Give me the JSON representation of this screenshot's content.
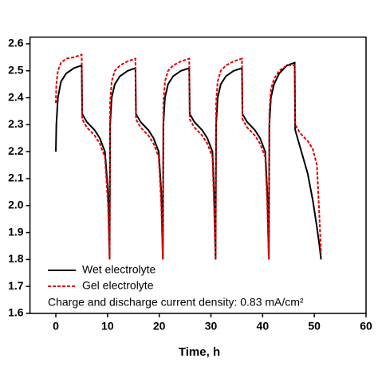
{
  "chart_data": {
    "type": "line",
    "x_label": "Time, h",
    "annotation": "Charge and discharge current density: 0.83 mA/cm²",
    "x": [
      0,
      0.1,
      0.4,
      1,
      2,
      3.5,
      5,
      5.1,
      6,
      7.5,
      8.5,
      9.5,
      10.1,
      10.4,
      10.5,
      10.8,
      11.4,
      12.4,
      13.9,
      15.4,
      15.5,
      16.4,
      17.9,
      18.9,
      19.9,
      20.4,
      20.7,
      20.8,
      21.1,
      21.7,
      22.7,
      24.2,
      25.8,
      25.9,
      26.8,
      28.3,
      29.3,
      30.3,
      30.6,
      30.9,
      31.0,
      31.3,
      31.9,
      32.9,
      34.4,
      36,
      36.1,
      37,
      38.5,
      39.5,
      40.5,
      40.9,
      41.2,
      41.3,
      41.6,
      42.2,
      43.2,
      44.7,
      46.2,
      46.3,
      47.2,
      48.7,
      49.7,
      50.5,
      51.0,
      51.3
    ],
    "series": [
      {
        "name": "Wet electrolyte",
        "color": "#000000",
        "dash": false,
        "values": [
          2.2,
          2.3,
          2.4,
          2.46,
          2.49,
          2.51,
          2.52,
          2.34,
          2.31,
          2.28,
          2.25,
          2.2,
          2.05,
          1.8,
          2.3,
          2.4,
          2.45,
          2.48,
          2.5,
          2.51,
          2.34,
          2.31,
          2.28,
          2.25,
          2.2,
          2.05,
          1.8,
          2.3,
          2.4,
          2.45,
          2.48,
          2.5,
          2.51,
          2.34,
          2.31,
          2.28,
          2.25,
          2.2,
          2.05,
          1.8,
          2.3,
          2.4,
          2.45,
          2.48,
          2.5,
          2.51,
          2.34,
          2.31,
          2.28,
          2.25,
          2.2,
          2.05,
          1.8,
          2.3,
          2.4,
          2.45,
          2.49,
          2.52,
          2.53,
          2.28,
          2.22,
          2.12,
          2.02,
          1.92,
          1.85,
          1.8
        ]
      },
      {
        "name": "Gel electrolyte",
        "color": "#e00000",
        "dash": true,
        "values": [
          2.38,
          2.45,
          2.5,
          2.53,
          2.545,
          2.55,
          2.56,
          2.32,
          2.29,
          2.26,
          2.23,
          2.18,
          2.0,
          1.8,
          2.38,
          2.46,
          2.5,
          2.52,
          2.535,
          2.545,
          2.32,
          2.29,
          2.26,
          2.23,
          2.18,
          2.0,
          1.8,
          2.38,
          2.46,
          2.5,
          2.52,
          2.535,
          2.545,
          2.32,
          2.29,
          2.26,
          2.23,
          2.18,
          2.0,
          1.8,
          2.38,
          2.46,
          2.5,
          2.52,
          2.535,
          2.545,
          2.32,
          2.29,
          2.26,
          2.23,
          2.18,
          2.0,
          1.8,
          2.35,
          2.43,
          2.47,
          2.5,
          2.52,
          2.52,
          2.3,
          2.27,
          2.24,
          2.21,
          2.15,
          1.95,
          1.82
        ]
      }
    ],
    "xlim": [
      -5,
      60
    ],
    "xticks": [
      0,
      10,
      20,
      30,
      40,
      50,
      60
    ],
    "ylim": [
      1.6,
      2.625
    ],
    "yticks": [
      1.6,
      1.7,
      1.8,
      1.9,
      {
        "value": 2,
        "label": "2.0"
      },
      2.1,
      2.2,
      2.3,
      2.4,
      2.5,
      2.6
    ],
    "grid": false,
    "legend": "lower-left"
  }
}
